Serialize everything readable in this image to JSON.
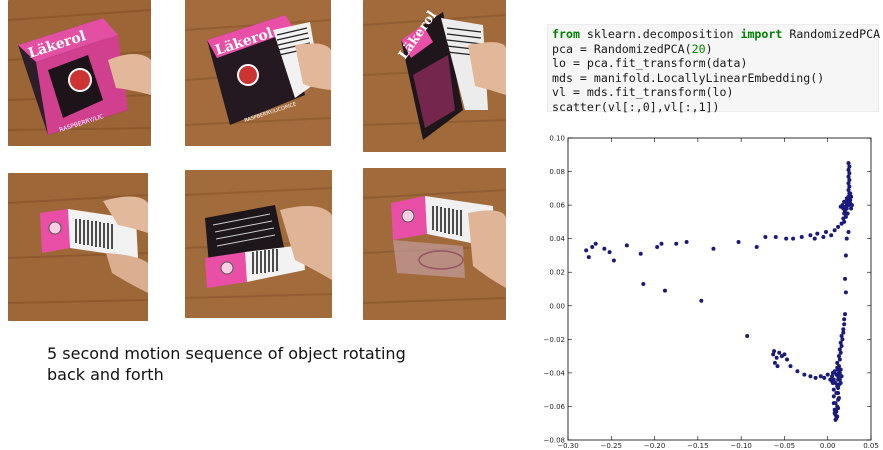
{
  "photos": [
    {
      "id": "frame-1",
      "box_label": "Läkerol",
      "flavor": "RASPBERRY/LIC"
    },
    {
      "id": "frame-2",
      "box_label": "Läkerol",
      "flavor": "RASPBERRY/LICORICE"
    },
    {
      "id": "frame-3",
      "box_label": "Läkerol",
      "flavor": ""
    },
    {
      "id": "frame-4",
      "box_label": "",
      "flavor": ""
    },
    {
      "id": "frame-5",
      "box_label": "",
      "flavor": ""
    },
    {
      "id": "frame-6",
      "box_label": "",
      "flavor": ""
    }
  ],
  "caption": "5 second motion sequence of object rotating\nback and forth",
  "code": {
    "line1_kw1": "from",
    "line1_mod": " sklearn.decomposition ",
    "line1_kw2": "import",
    "line1_name": " RandomizedPCA",
    "line2_a": "pca = RandomizedPCA(",
    "line2_num": "20",
    "line2_b": ")",
    "line3": "lo = pca.fit_transform(data)",
    "line4": "mds = manifold.LocallyLinearEmbedding()",
    "line5": "vl = mds.fit_transform(lo)",
    "line6": "scatter(vl[:,0],vl[:,1])"
  },
  "chart_data": {
    "type": "scatter",
    "title": "",
    "xlabel": "",
    "ylabel": "",
    "xlim": [
      -0.3,
      0.05
    ],
    "ylim": [
      -0.08,
      0.1
    ],
    "xticks": [
      "−0.30",
      "−0.25",
      "−0.20",
      "−0.15",
      "−0.10",
      "−0.05",
      "0.00",
      "0.05"
    ],
    "yticks": [
      "0.10",
      "0.08",
      "0.06",
      "0.04",
      "0.02",
      "0.00",
      "−0.02",
      "−0.04",
      "−0.06",
      "−0.08"
    ],
    "xtick_values": [
      -0.3,
      -0.25,
      -0.2,
      -0.15,
      -0.1,
      -0.05,
      0.0,
      0.05
    ],
    "ytick_values": [
      0.1,
      0.08,
      0.06,
      0.04,
      0.02,
      0.0,
      -0.02,
      -0.04,
      -0.06,
      -0.08
    ],
    "point_color": "#1a1a7a",
    "grid": false,
    "series": [
      {
        "points": [
          [
            -0.279,
            0.033
          ],
          [
            -0.276,
            0.029
          ],
          [
            -0.272,
            0.035
          ],
          [
            -0.268,
            0.037
          ],
          [
            -0.258,
            0.034
          ],
          [
            -0.252,
            0.032
          ],
          [
            -0.247,
            0.027
          ],
          [
            -0.232,
            0.036
          ],
          [
            -0.216,
            0.031
          ],
          [
            -0.197,
            0.035
          ],
          [
            -0.192,
            0.037
          ],
          [
            -0.175,
            0.037
          ],
          [
            -0.163,
            0.038
          ],
          [
            -0.132,
            0.034
          ],
          [
            -0.103,
            0.038
          ],
          [
            -0.082,
            0.035
          ],
          [
            -0.072,
            0.041
          ],
          [
            -0.06,
            0.041
          ],
          [
            -0.048,
            0.04
          ],
          [
            -0.04,
            0.04
          ],
          [
            -0.03,
            0.041
          ],
          [
            -0.02,
            0.042
          ],
          [
            -0.015,
            0.04
          ],
          [
            -0.012,
            0.043
          ],
          [
            -0.005,
            0.041
          ],
          [
            -0.002,
            0.044
          ],
          [
            0.004,
            0.042
          ],
          [
            0.008,
            0.045
          ],
          [
            0.012,
            0.047
          ],
          [
            0.016,
            0.049
          ],
          [
            0.018,
            0.052
          ],
          [
            0.019,
            0.055
          ],
          [
            0.02,
            0.057
          ],
          [
            0.021,
            0.059
          ],
          [
            0.022,
            0.061
          ],
          [
            0.023,
            0.063
          ],
          [
            0.024,
            0.065
          ],
          [
            0.025,
            0.067
          ],
          [
            0.024,
            0.069
          ],
          [
            0.025,
            0.071
          ],
          [
            0.024,
            0.073
          ],
          [
            0.025,
            0.075
          ],
          [
            0.024,
            0.077
          ],
          [
            0.025,
            0.079
          ],
          [
            0.024,
            0.081
          ],
          [
            0.025,
            0.083
          ],
          [
            0.024,
            0.085
          ],
          [
            0.021,
            0.058
          ],
          [
            0.019,
            0.062
          ],
          [
            0.017,
            0.06
          ],
          [
            0.022,
            0.064
          ],
          [
            0.026,
            0.061
          ],
          [
            0.027,
            0.058
          ],
          [
            0.026,
            0.063
          ],
          [
            0.028,
            0.06
          ],
          [
            0.02,
            0.056
          ],
          [
            0.018,
            0.058
          ],
          [
            0.022,
            0.058
          ],
          [
            0.027,
            0.065
          ],
          [
            0.026,
            0.067
          ],
          [
            0.015,
            0.059
          ],
          [
            0.023,
            0.055
          ],
          [
            0.021,
            0.053
          ],
          [
            0.024,
            0.06
          ],
          [
            0.019,
            0.05
          ],
          [
            0.024,
            0.044
          ],
          [
            0.022,
            0.04
          ],
          [
            0.021,
            0.03
          ],
          [
            0.02,
            0.016
          ],
          [
            0.021,
            0.008
          ],
          [
            -0.213,
            0.013
          ],
          [
            -0.188,
            0.009
          ],
          [
            -0.146,
            0.003
          ],
          [
            -0.093,
            -0.018
          ],
          [
            -0.063,
            -0.029
          ],
          [
            -0.062,
            -0.027
          ],
          [
            -0.059,
            -0.031
          ],
          [
            -0.056,
            -0.028
          ],
          [
            -0.053,
            -0.03
          ],
          [
            -0.05,
            -0.029
          ],
          [
            -0.047,
            -0.032
          ],
          [
            -0.061,
            -0.034
          ],
          [
            -0.058,
            -0.036
          ],
          [
            -0.043,
            -0.036
          ],
          [
            -0.035,
            -0.039
          ],
          [
            -0.027,
            -0.041
          ],
          [
            -0.02,
            -0.042
          ],
          [
            -0.014,
            -0.043
          ],
          [
            -0.008,
            -0.042
          ],
          [
            -0.004,
            -0.043
          ],
          [
            0.0,
            -0.041
          ],
          [
            0.003,
            -0.044
          ],
          [
            0.005,
            -0.042
          ],
          [
            0.006,
            -0.046
          ],
          [
            0.007,
            -0.05
          ],
          [
            0.007,
            -0.054
          ],
          [
            0.007,
            -0.058
          ],
          [
            0.008,
            -0.062
          ],
          [
            0.009,
            -0.065
          ],
          [
            0.01,
            -0.067
          ],
          [
            0.008,
            -0.064
          ],
          [
            0.011,
            -0.06
          ],
          [
            0.012,
            -0.056
          ],
          [
            0.012,
            -0.052
          ],
          [
            0.011,
            -0.048
          ],
          [
            0.012,
            -0.044
          ],
          [
            0.013,
            -0.04
          ],
          [
            0.012,
            -0.038
          ],
          [
            0.013,
            -0.036
          ],
          [
            0.011,
            -0.034
          ],
          [
            0.014,
            -0.032
          ],
          [
            0.013,
            -0.03
          ],
          [
            0.015,
            -0.028
          ],
          [
            0.014,
            -0.026
          ],
          [
            0.016,
            -0.024
          ],
          [
            0.015,
            -0.022
          ],
          [
            0.017,
            -0.02
          ],
          [
            0.016,
            -0.018
          ],
          [
            0.018,
            -0.016
          ],
          [
            0.018,
            -0.014
          ],
          [
            0.019,
            -0.011
          ],
          [
            0.019,
            -0.008
          ],
          [
            0.02,
            -0.005
          ],
          [
            0.01,
            -0.041
          ],
          [
            0.012,
            -0.042
          ],
          [
            0.014,
            -0.044
          ],
          [
            0.009,
            -0.046
          ],
          [
            0.013,
            -0.047
          ],
          [
            0.015,
            -0.046
          ],
          [
            0.008,
            -0.039
          ],
          [
            0.011,
            -0.037
          ],
          [
            0.014,
            -0.04
          ],
          [
            0.01,
            -0.052
          ],
          [
            0.013,
            -0.055
          ],
          [
            0.009,
            -0.058
          ],
          [
            0.012,
            -0.061
          ],
          [
            0.01,
            -0.063
          ],
          [
            0.011,
            -0.066
          ],
          [
            0.009,
            -0.068
          ],
          [
            0.012,
            -0.049
          ],
          [
            0.007,
            -0.044
          ],
          [
            0.006,
            -0.04
          ],
          [
            0.016,
            -0.042
          ],
          [
            0.015,
            -0.038
          ],
          [
            0.005,
            -0.045
          ]
        ]
      }
    ]
  }
}
